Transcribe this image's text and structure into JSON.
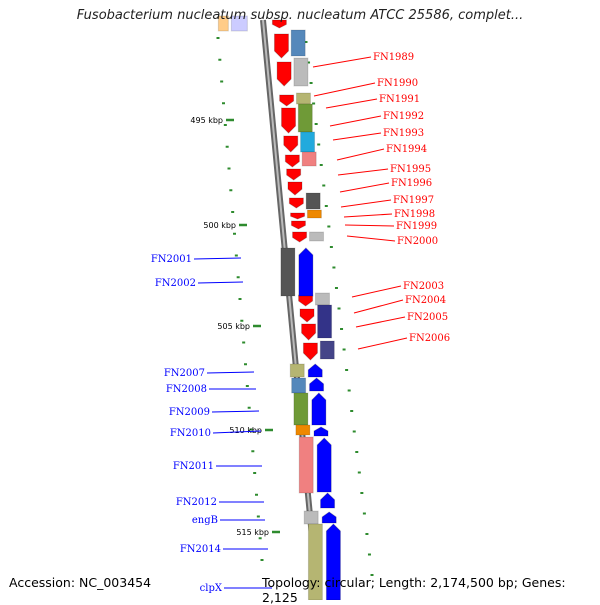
{
  "title": "Fusobacterium nucleatum subsp. nucleatum ATCC 25586, complet...",
  "footer": {
    "accession": "Accession: NC_003454",
    "topology": "Topology: circular; Length: 2,174,500 bp; Genes: 2,125"
  },
  "ticks": [
    "495 kbp",
    "500 kbp",
    "505 kbp",
    "510 kbp",
    "515 kbp"
  ],
  "genes_right": [
    "FN1989",
    "FN1990",
    "FN1991",
    "FN1992",
    "FN1993",
    "FN1994",
    "FN1995",
    "FN1996",
    "FN1997",
    "FN1998",
    "FN1999",
    "FN2000",
    "FN2003",
    "FN2004",
    "FN2005",
    "FN2006"
  ],
  "genes_left": [
    "FN2001",
    "FN2002",
    "FN2007",
    "FN2008",
    "FN2009",
    "FN2010",
    "FN2011",
    "FN2012",
    "engB",
    "FN2014",
    "clpX"
  ],
  "colors": {
    "reverse_strand": "#ff0000",
    "forward_strand": "#0000ff",
    "backbone": "#888888",
    "tick": "#2e8b2e"
  }
}
